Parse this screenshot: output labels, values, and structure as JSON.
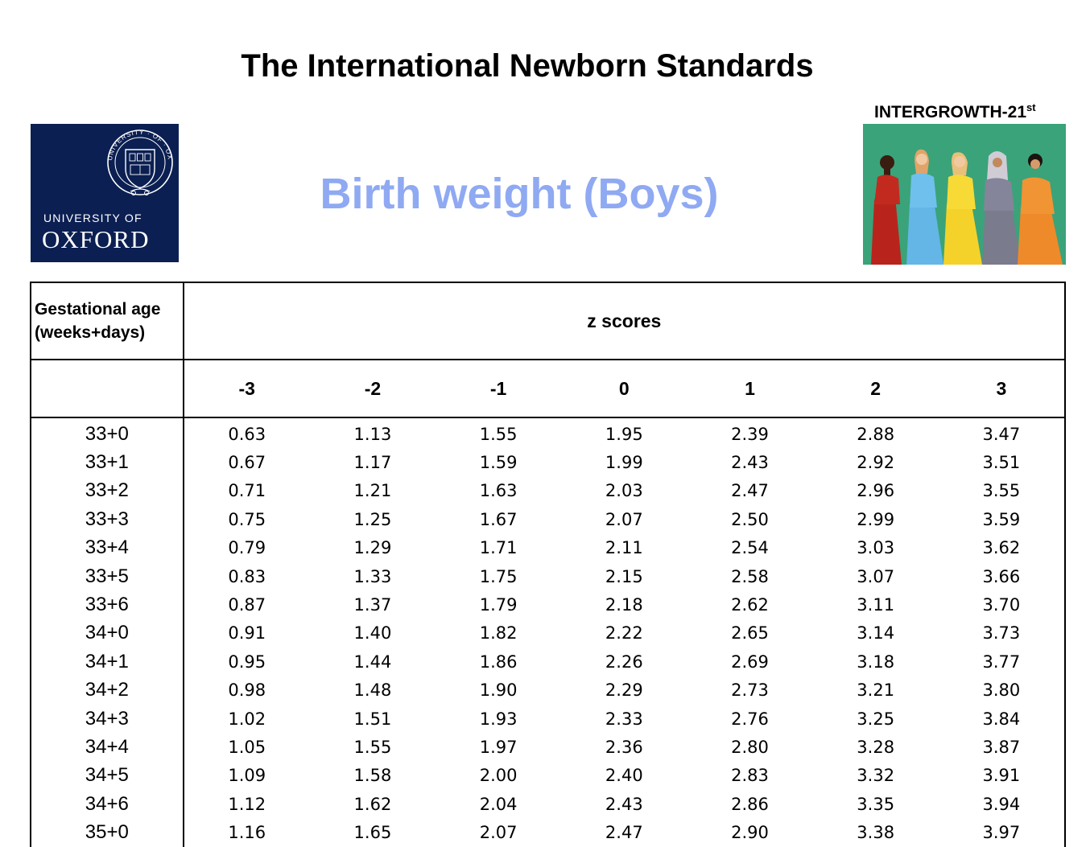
{
  "header": {
    "title": "The International Newborn Standards",
    "subtitle": "Birth weight (Boys)"
  },
  "oxford_logo": {
    "university_of": "UNIVERSITY OF",
    "name": "OXFORD",
    "seal_text": "UNIVERSITY · OF · OXFORD",
    "background_color": "#0b1f52"
  },
  "intergrowth": {
    "label": "INTERGROWTH-21",
    "superscript": "st"
  },
  "table": {
    "first_header": [
      "Gestational age",
      "(weeks+days)"
    ],
    "group_header": "z scores",
    "z_columns": [
      "-3",
      "-2",
      "-1",
      "0",
      "1",
      "2",
      "3"
    ],
    "rows": [
      {
        "ga": "33+0",
        "values": [
          "0.63",
          "1.13",
          "1.55",
          "1.95",
          "2.39",
          "2.88",
          "3.47"
        ]
      },
      {
        "ga": "33+1",
        "values": [
          "0.67",
          "1.17",
          "1.59",
          "1.99",
          "2.43",
          "2.92",
          "3.51"
        ]
      },
      {
        "ga": "33+2",
        "values": [
          "0.71",
          "1.21",
          "1.63",
          "2.03",
          "2.47",
          "2.96",
          "3.55"
        ]
      },
      {
        "ga": "33+3",
        "values": [
          "0.75",
          "1.25",
          "1.67",
          "2.07",
          "2.50",
          "2.99",
          "3.59"
        ]
      },
      {
        "ga": "33+4",
        "values": [
          "0.79",
          "1.29",
          "1.71",
          "2.11",
          "2.54",
          "3.03",
          "3.62"
        ]
      },
      {
        "ga": "33+5",
        "values": [
          "0.83",
          "1.33",
          "1.75",
          "2.15",
          "2.58",
          "3.07",
          "3.66"
        ]
      },
      {
        "ga": "33+6",
        "values": [
          "0.87",
          "1.37",
          "1.79",
          "2.18",
          "2.62",
          "3.11",
          "3.70"
        ]
      },
      {
        "ga": "34+0",
        "values": [
          "0.91",
          "1.40",
          "1.82",
          "2.22",
          "2.65",
          "3.14",
          "3.73"
        ]
      },
      {
        "ga": "34+1",
        "values": [
          "0.95",
          "1.44",
          "1.86",
          "2.26",
          "2.69",
          "3.18",
          "3.77"
        ]
      },
      {
        "ga": "34+2",
        "values": [
          "0.98",
          "1.48",
          "1.90",
          "2.29",
          "2.73",
          "3.21",
          "3.80"
        ]
      },
      {
        "ga": "34+3",
        "values": [
          "1.02",
          "1.51",
          "1.93",
          "2.33",
          "2.76",
          "3.25",
          "3.84"
        ]
      },
      {
        "ga": "34+4",
        "values": [
          "1.05",
          "1.55",
          "1.97",
          "2.36",
          "2.80",
          "3.28",
          "3.87"
        ]
      },
      {
        "ga": "34+5",
        "values": [
          "1.09",
          "1.58",
          "2.00",
          "2.40",
          "2.83",
          "3.32",
          "3.91"
        ]
      },
      {
        "ga": "34+6",
        "values": [
          "1.12",
          "1.62",
          "2.04",
          "2.43",
          "2.86",
          "3.35",
          "3.94"
        ]
      },
      {
        "ga": "35+0",
        "values": [
          "1.16",
          "1.65",
          "2.07",
          "2.47",
          "2.90",
          "3.38",
          "3.97"
        ]
      }
    ]
  }
}
